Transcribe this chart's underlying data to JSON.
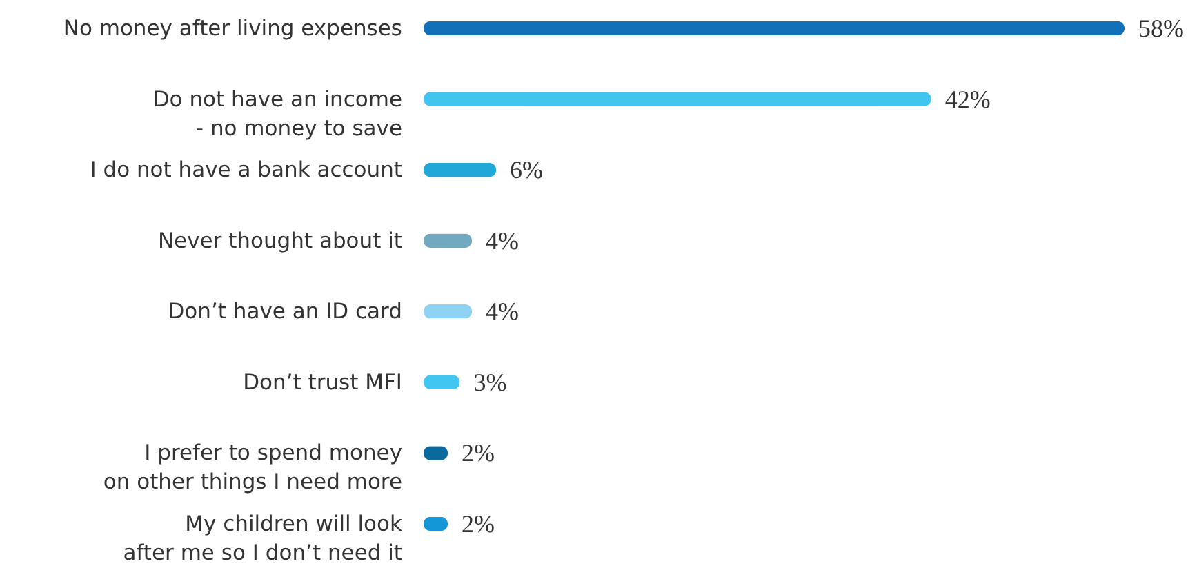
{
  "chart_data": {
    "type": "bar",
    "orientation": "horizontal",
    "categories": [
      "No money after living expenses",
      "Do not have an income\n- no money to save",
      "I do not have a bank account",
      "Never thought about it",
      "Don’t have an ID card",
      "Don’t trust MFI",
      "I prefer to spend money\non other things I need more",
      "My children will look\nafter me so I don’t need it"
    ],
    "values": [
      58,
      42,
      6,
      4,
      4,
      3,
      2,
      2
    ],
    "colors": [
      "#1170b8",
      "#40c4f0",
      "#21a8d8",
      "#72a8c0",
      "#8fd2f2",
      "#40c6f0",
      "#0a6a9e",
      "#1497d6"
    ],
    "value_labels": [
      "58%",
      "42%",
      "6%",
      "4%",
      "4%",
      "3%",
      "2%",
      "2%"
    ]
  }
}
